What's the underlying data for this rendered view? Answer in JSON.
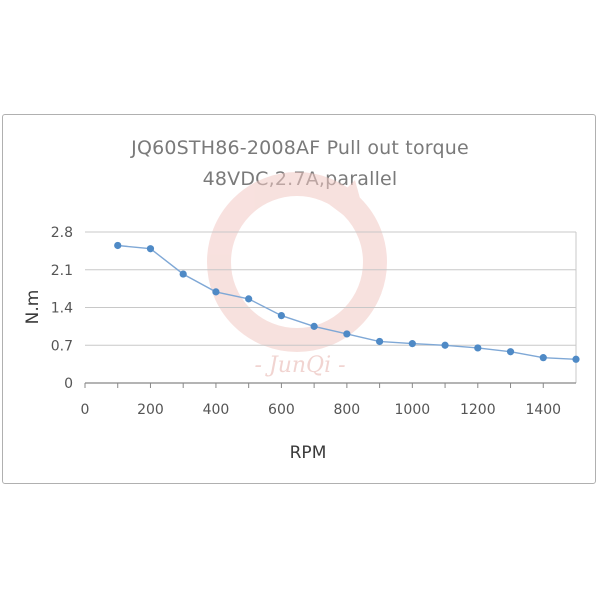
{
  "chart_data": {
    "type": "line",
    "title": "JQ60STH86-2008AF Pull out torque",
    "subtitle": "48VDC,2.7A,parallel",
    "xlabel": "RPM",
    "ylabel": "N.m",
    "xlim": [
      0,
      1500
    ],
    "ylim": [
      0,
      2.8
    ],
    "xticks": [
      0,
      200,
      400,
      600,
      800,
      1000,
      1200,
      1400
    ],
    "yticks": [
      0,
      0.7,
      1.4,
      2.1,
      2.8
    ],
    "xtick_labels": [
      "0",
      "200",
      "400",
      "600",
      "800",
      "1000",
      "1200",
      "1400"
    ],
    "ytick_labels": [
      "0",
      "0.7",
      "1.4",
      "2.1",
      "2.8"
    ],
    "grid": "horizontal",
    "series": [
      {
        "x": [
          100,
          200,
          300,
          400,
          500,
          600,
          700,
          800,
          900,
          1000,
          1100,
          1200,
          1300,
          1400,
          1500
        ],
        "y": [
          2.55,
          2.49,
          2.02,
          1.69,
          1.56,
          1.25,
          1.05,
          0.91,
          0.77,
          0.73,
          0.7,
          0.65,
          0.58,
          0.47,
          0.44
        ]
      }
    ],
    "watermark": "- JunQi -",
    "colors": {
      "line": "#7fa8d6",
      "marker": "#4f8ac6",
      "grid": "#c8c8c8",
      "axis": "#888888",
      "watermark": "#f2c9c4"
    }
  }
}
